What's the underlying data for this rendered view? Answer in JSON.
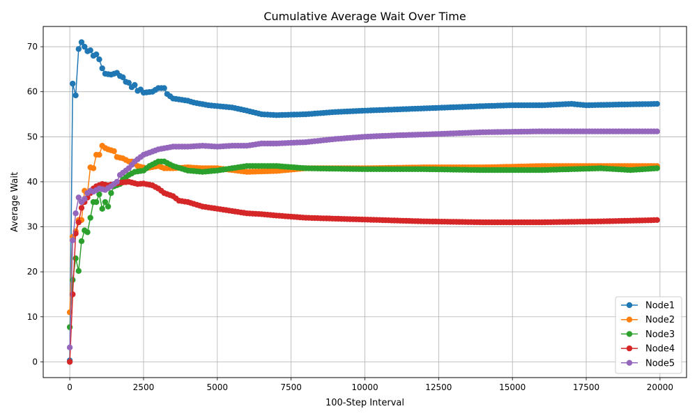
{
  "chart_data": {
    "type": "line",
    "title": "Cumulative Average Wait Over Time",
    "xlabel": "100-Step Interval",
    "ylabel": "Average Wait",
    "xlim": [
      -900,
      20900
    ],
    "ylim": [
      -3.5,
      74.5
    ],
    "x_ticks": [
      0,
      2500,
      5000,
      7500,
      10000,
      12500,
      15000,
      17500,
      20000
    ],
    "y_ticks": [
      0,
      10,
      20,
      30,
      40,
      50,
      60,
      70
    ],
    "grid": true,
    "legend_position": "lower-right",
    "marker": "circle",
    "x_range": [
      0,
      19900
    ],
    "x_step": 100,
    "series": [
      {
        "name": "Node1",
        "color": "#1f77b4",
        "anchors": [
          [
            0,
            0.3
          ],
          [
            100,
            61.8
          ],
          [
            200,
            59.2
          ],
          [
            300,
            69.5
          ],
          [
            400,
            71.0
          ],
          [
            500,
            70.0
          ],
          [
            600,
            69.0
          ],
          [
            700,
            69.2
          ],
          [
            800,
            68.0
          ],
          [
            900,
            68.3
          ],
          [
            1000,
            67.2
          ],
          [
            1100,
            65.2
          ],
          [
            1200,
            64.0
          ],
          [
            1400,
            63.8
          ],
          [
            1600,
            64.2
          ],
          [
            1700,
            63.5
          ],
          [
            1800,
            63.2
          ],
          [
            1900,
            62.2
          ],
          [
            2000,
            62.0
          ],
          [
            2100,
            61.0
          ],
          [
            2200,
            61.5
          ],
          [
            2300,
            60.2
          ],
          [
            2400,
            60.5
          ],
          [
            2500,
            59.8
          ],
          [
            2800,
            60.0
          ],
          [
            3000,
            60.8
          ],
          [
            3200,
            60.8
          ],
          [
            3300,
            59.5
          ],
          [
            3500,
            58.5
          ],
          [
            4000,
            58.0
          ],
          [
            4200,
            57.6
          ],
          [
            4700,
            57.0
          ],
          [
            5500,
            56.5
          ],
          [
            6000,
            55.8
          ],
          [
            6500,
            55.0
          ],
          [
            7000,
            54.8
          ],
          [
            8000,
            55.0
          ],
          [
            9000,
            55.5
          ],
          [
            10000,
            55.8
          ],
          [
            12000,
            56.3
          ],
          [
            14000,
            56.8
          ],
          [
            15000,
            57.0
          ],
          [
            16000,
            57.0
          ],
          [
            17000,
            57.3
          ],
          [
            17500,
            57.0
          ],
          [
            19000,
            57.2
          ],
          [
            19900,
            57.3
          ]
        ]
      },
      {
        "name": "Node2",
        "color": "#ff7f0e",
        "anchors": [
          [
            0,
            11.0
          ],
          [
            100,
            27.8
          ],
          [
            200,
            29.0
          ],
          [
            300,
            31.5
          ],
          [
            400,
            31.5
          ],
          [
            500,
            38.0
          ],
          [
            600,
            37.5
          ],
          [
            700,
            43.2
          ],
          [
            800,
            43.0
          ],
          [
            900,
            46.0
          ],
          [
            1000,
            46.0
          ],
          [
            1100,
            48.0
          ],
          [
            1200,
            47.5
          ],
          [
            1300,
            47.2
          ],
          [
            1500,
            46.8
          ],
          [
            1600,
            45.5
          ],
          [
            1800,
            45.2
          ],
          [
            2000,
            44.5
          ],
          [
            2100,
            44.5
          ],
          [
            2300,
            43.5
          ],
          [
            2600,
            43.0
          ],
          [
            3000,
            43.5
          ],
          [
            3200,
            43.0
          ],
          [
            3500,
            43.0
          ],
          [
            4000,
            43.2
          ],
          [
            4500,
            43.0
          ],
          [
            5000,
            43.0
          ],
          [
            6000,
            42.2
          ],
          [
            7000,
            42.4
          ],
          [
            8000,
            43.0
          ],
          [
            9000,
            43.0
          ],
          [
            10000,
            43.0
          ],
          [
            12000,
            43.2
          ],
          [
            14000,
            43.2
          ],
          [
            16000,
            43.5
          ],
          [
            18000,
            43.5
          ],
          [
            19900,
            43.5
          ]
        ]
      },
      {
        "name": "Node3",
        "color": "#2ca02c",
        "anchors": [
          [
            0,
            7.7
          ],
          [
            100,
            18.2
          ],
          [
            200,
            23.0
          ],
          [
            300,
            20.2
          ],
          [
            400,
            26.8
          ],
          [
            500,
            29.2
          ],
          [
            600,
            28.8
          ],
          [
            700,
            32.0
          ],
          [
            800,
            35.5
          ],
          [
            900,
            35.5
          ],
          [
            1000,
            37.2
          ],
          [
            1100,
            34.0
          ],
          [
            1200,
            35.5
          ],
          [
            1300,
            34.5
          ],
          [
            1400,
            37.5
          ],
          [
            1500,
            39.0
          ],
          [
            1700,
            39.5
          ],
          [
            1800,
            40.5
          ],
          [
            2000,
            41.5
          ],
          [
            2200,
            42.2
          ],
          [
            2500,
            42.5
          ],
          [
            2700,
            43.5
          ],
          [
            3000,
            44.5
          ],
          [
            3200,
            44.5
          ],
          [
            3500,
            43.5
          ],
          [
            4000,
            42.5
          ],
          [
            4500,
            42.2
          ],
          [
            5000,
            42.5
          ],
          [
            5500,
            43.0
          ],
          [
            6000,
            43.5
          ],
          [
            6500,
            43.5
          ],
          [
            7000,
            43.5
          ],
          [
            8000,
            43.0
          ],
          [
            10000,
            42.8
          ],
          [
            12000,
            42.8
          ],
          [
            14000,
            42.6
          ],
          [
            16000,
            42.6
          ],
          [
            18000,
            43.0
          ],
          [
            19000,
            42.6
          ],
          [
            19900,
            43.0
          ]
        ]
      },
      {
        "name": "Node4",
        "color": "#d62728",
        "anchors": [
          [
            0,
            0.0
          ],
          [
            100,
            15.0
          ],
          [
            200,
            28.5
          ],
          [
            300,
            31.0
          ],
          [
            400,
            34.2
          ],
          [
            500,
            35.5
          ],
          [
            600,
            36.5
          ],
          [
            700,
            37.5
          ],
          [
            800,
            38.5
          ],
          [
            900,
            39.0
          ],
          [
            1100,
            39.5
          ],
          [
            1300,
            39.2
          ],
          [
            1500,
            39.5
          ],
          [
            1700,
            39.8
          ],
          [
            2000,
            40.0
          ],
          [
            2300,
            39.5
          ],
          [
            2500,
            39.6
          ],
          [
            2800,
            39.2
          ],
          [
            3000,
            38.5
          ],
          [
            3200,
            37.5
          ],
          [
            3500,
            36.8
          ],
          [
            3700,
            35.8
          ],
          [
            4000,
            35.5
          ],
          [
            4500,
            34.5
          ],
          [
            5000,
            34.0
          ],
          [
            5500,
            33.5
          ],
          [
            6000,
            33.0
          ],
          [
            6500,
            32.8
          ],
          [
            7000,
            32.5
          ],
          [
            8000,
            32.0
          ],
          [
            9000,
            31.8
          ],
          [
            10000,
            31.6
          ],
          [
            12000,
            31.2
          ],
          [
            14000,
            31.0
          ],
          [
            16000,
            31.0
          ],
          [
            18000,
            31.2
          ],
          [
            19900,
            31.5
          ]
        ]
      },
      {
        "name": "Node5",
        "color": "#9467bd",
        "anchors": [
          [
            0,
            3.2
          ],
          [
            100,
            27.0
          ],
          [
            200,
            33.0
          ],
          [
            300,
            36.5
          ],
          [
            400,
            35.5
          ],
          [
            500,
            36.2
          ],
          [
            600,
            37.5
          ],
          [
            700,
            38.0
          ],
          [
            800,
            37.8
          ],
          [
            1000,
            38.5
          ],
          [
            1200,
            38.2
          ],
          [
            1400,
            39.0
          ],
          [
            1600,
            40.0
          ],
          [
            1700,
            41.5
          ],
          [
            2000,
            43.0
          ],
          [
            2200,
            44.5
          ],
          [
            2500,
            46.0
          ],
          [
            3000,
            47.2
          ],
          [
            3500,
            47.8
          ],
          [
            4000,
            47.8
          ],
          [
            4500,
            48.0
          ],
          [
            5000,
            47.8
          ],
          [
            5500,
            48.0
          ],
          [
            6000,
            48.0
          ],
          [
            6500,
            48.5
          ],
          [
            7000,
            48.5
          ],
          [
            8000,
            48.8
          ],
          [
            9000,
            49.5
          ],
          [
            10000,
            50.0
          ],
          [
            11000,
            50.3
          ],
          [
            12000,
            50.5
          ],
          [
            14000,
            51.0
          ],
          [
            16000,
            51.2
          ],
          [
            18000,
            51.2
          ],
          [
            19900,
            51.2
          ]
        ]
      }
    ]
  }
}
